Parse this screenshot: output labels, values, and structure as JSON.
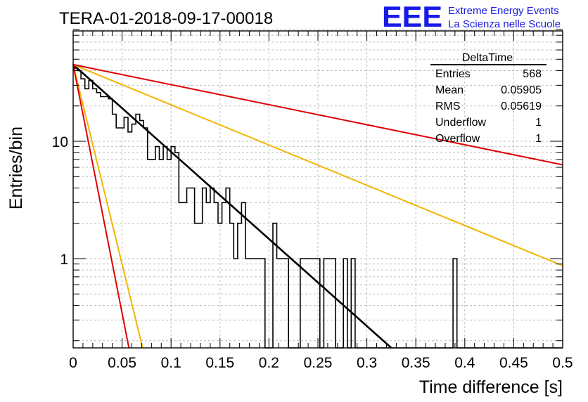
{
  "title": "TERA-01-2018-09-17-00018",
  "logo": {
    "mark": "EEE",
    "line1": "Extreme Energy Events",
    "line2": "La Scienza nelle Scuole",
    "color": "#1a1ae6"
  },
  "stats_box": {
    "name": "DeltaTime",
    "rows": [
      {
        "label": "Entries",
        "value": "568"
      },
      {
        "label": "Mean",
        "value": "0.05905"
      },
      {
        "label": "RMS",
        "value": "0.05619"
      },
      {
        "label": "Underflow",
        "value": "1"
      },
      {
        "label": "Overflow",
        "value": "1"
      }
    ]
  },
  "chart_data": {
    "type": "line",
    "title": "TERA-01-2018-09-17-00018",
    "xlabel": "Time difference [s]",
    "ylabel": "Entries/bin",
    "xlim": [
      0,
      0.5
    ],
    "ylim": [
      0.17,
      90
    ],
    "yscale": "log",
    "grid": true,
    "xticks": [
      "0",
      "0.05",
      "0.1",
      "0.15",
      "0.2",
      "0.25",
      "0.3",
      "0.35",
      "0.4",
      "0.45",
      "0.5"
    ],
    "yticks": [
      "1",
      "10"
    ],
    "histogram": {
      "name": "DeltaTime",
      "bin_width": 0.004,
      "values": [
        42,
        40,
        34,
        28,
        33,
        28,
        26,
        24,
        24,
        23,
        17,
        13,
        13,
        16,
        12,
        14,
        17,
        15,
        13,
        7,
        7,
        9,
        7,
        9,
        7,
        9,
        8,
        3,
        3,
        4,
        4,
        2,
        2,
        4,
        3,
        4,
        3,
        2,
        3,
        4,
        2,
        1,
        2,
        3,
        1,
        1,
        1,
        1,
        1,
        0,
        0,
        2,
        1,
        1,
        1,
        0,
        0,
        0,
        1,
        1,
        1,
        1,
        1,
        0,
        1,
        1,
        1,
        0,
        0,
        1,
        0,
        1,
        0,
        0,
        0,
        0,
        0,
        0,
        0,
        0,
        0,
        0,
        0,
        0,
        0,
        0,
        0,
        0,
        0,
        0,
        0,
        0,
        0,
        0,
        0,
        0,
        0,
        1,
        0,
        0,
        0,
        0,
        0,
        0,
        0,
        0,
        0,
        0,
        0,
        0,
        0,
        0,
        0,
        0,
        0,
        0,
        0,
        0,
        0,
        0,
        0,
        0,
        0,
        0,
        0
      ],
      "color": "#000000"
    },
    "series": [
      {
        "x": [
          0,
          0.325
        ],
        "y": [
          45,
          0.165
        ],
        "color": "#000000"
      },
      {
        "x": [
          0,
          0.5
        ],
        "y": [
          45,
          0.87
        ],
        "color": "#f2b600"
      },
      {
        "x": [
          0,
          0.071
        ],
        "y": [
          45,
          0.165
        ],
        "color": "#f2b600"
      },
      {
        "x": [
          0,
          0.5
        ],
        "y": [
          45,
          6.3
        ],
        "color": "#e00000"
      },
      {
        "x": [
          0,
          0.057
        ],
        "y": [
          45,
          0.165
        ],
        "color": "#e00000"
      }
    ]
  }
}
